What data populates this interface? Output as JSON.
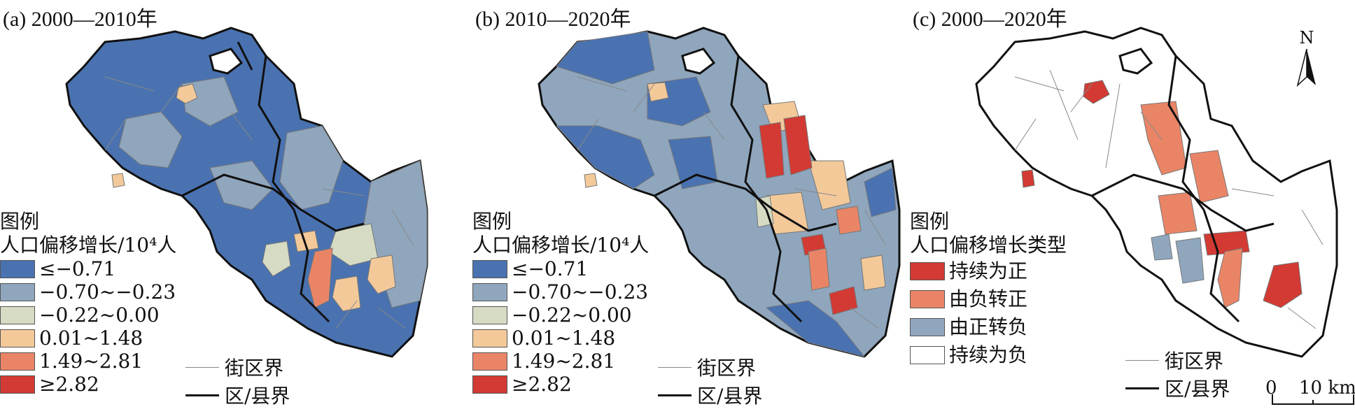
{
  "panels": [
    {
      "title": "(a) 2000—2010年",
      "legend_title": "图例",
      "legend_subtitle": "人口偏移增长/10⁴人",
      "legend_items": [
        {
          "label": "≤−0.71",
          "color": "#4a72b0"
        },
        {
          "label": "−0.70~−0.23",
          "color": "#8fa6bd"
        },
        {
          "label": "−0.22~0.00",
          "color": "#d6dcc4"
        },
        {
          "label": "0.01~1.48",
          "color": "#f3c99a"
        },
        {
          "label": "1.49~2.81",
          "color": "#e98566"
        },
        {
          "label": "≥2.82",
          "color": "#d23a33"
        }
      ],
      "line_legend": [
        {
          "label": "街区界"
        },
        {
          "label": "区/县界"
        }
      ]
    },
    {
      "title": "(b) 2010—2020年",
      "legend_title": "图例",
      "legend_subtitle": "人口偏移增长/10⁴人",
      "legend_items": [
        {
          "label": "≤−0.71",
          "color": "#4a72b0"
        },
        {
          "label": "−0.70~−0.23",
          "color": "#8fa6bd"
        },
        {
          "label": "−0.22~0.00",
          "color": "#d6dcc4"
        },
        {
          "label": "0.01~1.48",
          "color": "#f3c99a"
        },
        {
          "label": "1.49~2.81",
          "color": "#e98566"
        },
        {
          "label": "≥2.82",
          "color": "#d23a33"
        }
      ],
      "line_legend": [
        {
          "label": "街区界"
        },
        {
          "label": "区/县界"
        }
      ]
    },
    {
      "title": "(c) 2000—2020年",
      "legend_title": "图例",
      "legend_subtitle": "人口偏移增长类型",
      "legend_items": [
        {
          "label": "持续为正",
          "color": "#d23a33"
        },
        {
          "label": "由负转正",
          "color": "#e98566"
        },
        {
          "label": "由正转负",
          "color": "#8fa6bd"
        },
        {
          "label": "持续为负",
          "color": "#ffffff"
        }
      ],
      "line_legend": [
        {
          "label": "街区界"
        },
        {
          "label": "区/县界"
        }
      ],
      "north_label": "N",
      "scale_zero": "0",
      "scale_label": "10 km"
    }
  ]
}
